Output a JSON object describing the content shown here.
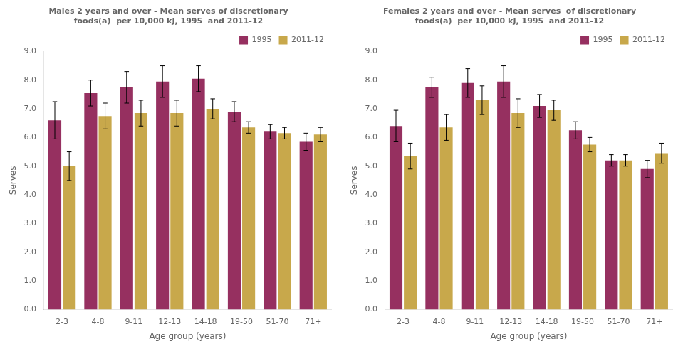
{
  "chart_data": [
    {
      "type": "bar",
      "title": "Males 2 years and over - Mean serves of discretionary\nfoods(a)  per 10,000 kJ, 1995  and 2011-12",
      "x_label": "Age group (years)",
      "y_label": "Serves",
      "categories": [
        "2-3",
        "4-8",
        "9-11",
        "12-13",
        "14-18",
        "19-50",
        "51-70",
        "71+"
      ],
      "series": [
        {
          "name": "1995",
          "color": "#963060",
          "values": [
            6.6,
            7.55,
            7.75,
            7.95,
            8.05,
            6.9,
            6.2,
            5.85
          ],
          "errors": [
            0.65,
            0.45,
            0.55,
            0.55,
            0.45,
            0.35,
            0.25,
            0.3
          ]
        },
        {
          "name": "2011-12",
          "color": "#C8A84B",
          "values": [
            5.0,
            6.75,
            6.85,
            6.85,
            7.0,
            6.35,
            6.15,
            6.1
          ],
          "errors": [
            0.5,
            0.45,
            0.45,
            0.45,
            0.35,
            0.2,
            0.2,
            0.25
          ]
        }
      ],
      "ylim": [
        0,
        9
      ],
      "yticks": [
        {
          "value": 0,
          "label": "0.0"
        },
        {
          "value": 1,
          "label": "1.0"
        },
        {
          "value": 2,
          "label": "2.0"
        },
        {
          "value": 3,
          "label": "3.0"
        },
        {
          "value": 4,
          "label": "4.0"
        },
        {
          "value": 5,
          "label": "5.0"
        },
        {
          "value": 6,
          "label": "6.0"
        },
        {
          "value": 7,
          "label": "7.0"
        },
        {
          "value": 8,
          "label": "8.0"
        },
        {
          "value": 9,
          "label": "9.0"
        }
      ],
      "grid": false,
      "legend": "upper right"
    },
    {
      "type": "bar",
      "title": "Females 2 years and over - Mean serves  of discretionary\nfoods(a)  per 10,000 kJ, 1995  and 2011-12",
      "x_label": "Age group (years)",
      "y_label": "Serves",
      "categories": [
        "2-3",
        "4-8",
        "9-11",
        "12-13",
        "14-18",
        "19-50",
        "51-70",
        "71+"
      ],
      "series": [
        {
          "name": "1995",
          "color": "#963060",
          "values": [
            6.4,
            7.75,
            7.9,
            7.95,
            7.1,
            6.25,
            5.2,
            4.9
          ],
          "errors": [
            0.55,
            0.35,
            0.5,
            0.55,
            0.4,
            0.3,
            0.2,
            0.3
          ]
        },
        {
          "name": "2011-12",
          "color": "#C8A84B",
          "values": [
            5.35,
            6.35,
            7.3,
            6.85,
            6.95,
            5.75,
            5.2,
            5.45
          ],
          "errors": [
            0.45,
            0.45,
            0.5,
            0.5,
            0.35,
            0.25,
            0.2,
            0.35
          ]
        }
      ],
      "ylim": [
        0,
        9
      ],
      "yticks": [
        {
          "value": 0,
          "label": "0.0"
        },
        {
          "value": 1,
          "label": "1.0"
        },
        {
          "value": 2,
          "label": "2.0"
        },
        {
          "value": 3,
          "label": "3.0"
        },
        {
          "value": 4,
          "label": "4.0"
        },
        {
          "value": 5,
          "label": "5.0"
        },
        {
          "value": 6,
          "label": "6.0"
        },
        {
          "value": 7,
          "label": "7.0"
        },
        {
          "value": 8,
          "label": "8.0"
        },
        {
          "value": 9,
          "label": "9.0"
        }
      ],
      "grid": false,
      "legend": "upper right"
    }
  ]
}
